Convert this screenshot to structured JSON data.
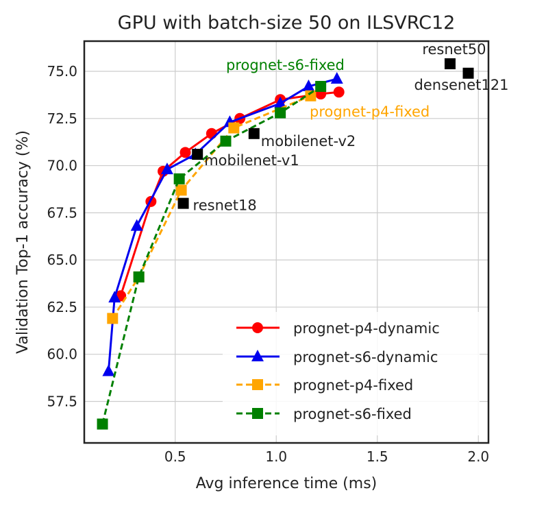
{
  "chart_data": {
    "type": "line",
    "title": "GPU with batch-size 50 on ILSVRC12",
    "xlabel": "Avg inference time (ms)",
    "ylabel": "Validation Top-1 accuracy (%)",
    "xlim": [
      0.05,
      2.05
    ],
    "ylim": [
      55.3,
      76.6
    ],
    "xticks": [
      "0.5",
      "1.0",
      "1.5",
      "2.0"
    ],
    "yticks": [
      "57.5",
      "60.0",
      "62.5",
      "65.0",
      "67.5",
      "70.0",
      "72.5",
      "75.0"
    ],
    "grid": true,
    "legend_position": "bottom-right",
    "series": [
      {
        "name": "prognet-p4-dynamic",
        "color": "#ff0000",
        "marker": "circle",
        "dash": "solid",
        "x": [
          0.23,
          0.38,
          0.44,
          0.55,
          0.68,
          0.82,
          1.02,
          1.22,
          1.31
        ],
        "y": [
          63.1,
          68.1,
          69.7,
          70.7,
          71.7,
          72.5,
          73.5,
          73.8,
          73.9
        ]
      },
      {
        "name": "prognet-s6-dynamic",
        "color": "#0000ee",
        "marker": "triangle",
        "dash": "solid",
        "x": [
          0.17,
          0.2,
          0.31,
          0.46,
          0.6,
          0.77,
          1.02,
          1.16,
          1.3
        ],
        "y": [
          59.1,
          63.0,
          66.8,
          69.8,
          70.6,
          72.3,
          73.3,
          74.2,
          74.6
        ]
      },
      {
        "name": "prognet-p4-fixed",
        "color": "#ffa500",
        "marker": "square",
        "dash": "dashed",
        "x": [
          0.19,
          0.32,
          0.53,
          0.79,
          1.17
        ],
        "y": [
          61.9,
          64.1,
          68.7,
          72.0,
          73.7
        ]
      },
      {
        "name": "prognet-s6-fixed",
        "color": "#008000",
        "marker": "square",
        "dash": "dashed",
        "x": [
          0.14,
          0.32,
          0.52,
          0.75,
          1.02,
          1.22
        ],
        "y": [
          56.3,
          64.1,
          69.3,
          71.3,
          72.8,
          74.2
        ]
      }
    ],
    "reference_points": [
      {
        "name": "resnet18",
        "x": 0.54,
        "y": 68.0
      },
      {
        "name": "mobilenet-v1",
        "x": 0.61,
        "y": 70.6
      },
      {
        "name": "mobilenet-v2",
        "x": 0.89,
        "y": 71.7
      },
      {
        "name": "resnet50",
        "x": 1.86,
        "y": 75.4
      },
      {
        "name": "densenet121",
        "x": 1.95,
        "y": 74.9
      }
    ],
    "annotations": [
      {
        "text": "prognet-s6-fixed",
        "color": "#008000"
      },
      {
        "text": "prognet-p4-fixed",
        "color": "#ffa500"
      }
    ],
    "ref_label_color": "#222222"
  }
}
